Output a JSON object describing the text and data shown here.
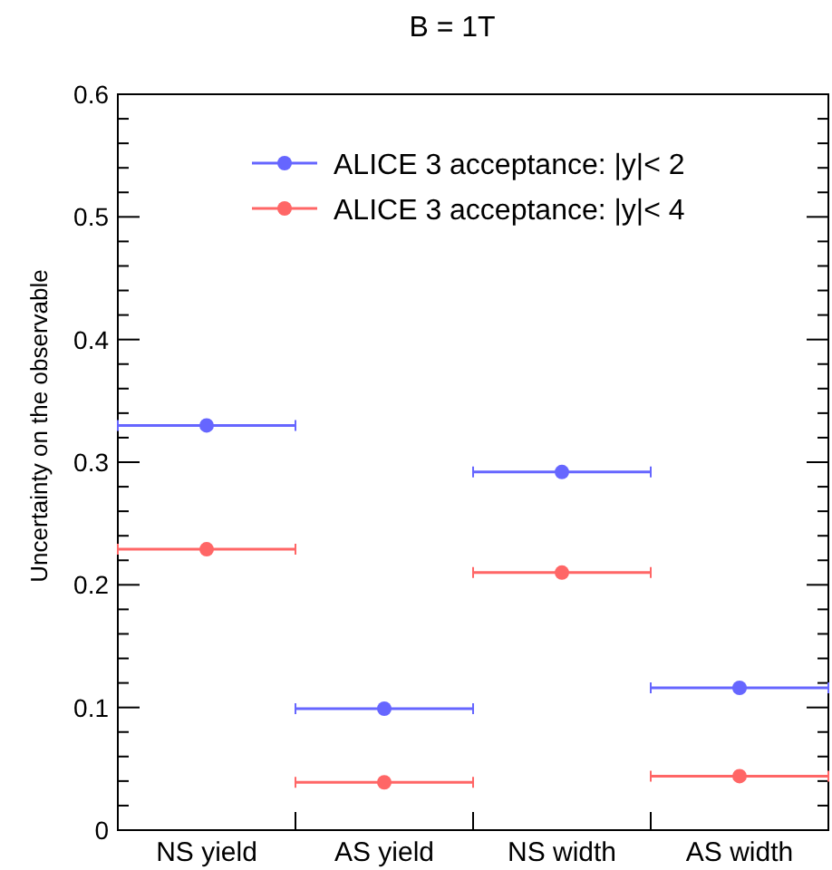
{
  "chart_data": {
    "type": "scatter",
    "title": "B = 1T",
    "ylabel": "Uncertainty on the observable",
    "categories": [
      "NS yield",
      "AS yield",
      "NS width",
      "AS width"
    ],
    "series": [
      {
        "name": "ALICE 3 acceptance: |y|< 2",
        "color": "#6666ff",
        "values": [
          0.33,
          0.099,
          0.292,
          0.116
        ]
      },
      {
        "name": "ALICE 3 acceptance: |y|< 4",
        "color": "#ff6666",
        "values": [
          0.229,
          0.039,
          0.21,
          0.044
        ]
      }
    ],
    "ylim": [
      0,
      0.6
    ],
    "yticks": [
      0,
      {
        "value": 0.02,
        "label": null
      },
      {
        "value": 0.04,
        "label": null
      },
      {
        "value": 0.06,
        "label": null
      },
      {
        "value": 0.08,
        "label": null
      },
      0.1,
      {
        "value": 0.12,
        "label": null
      },
      {
        "value": 0.14,
        "label": null
      },
      {
        "value": 0.16,
        "label": null
      },
      {
        "value": 0.18,
        "label": null
      },
      0.2,
      {
        "value": 0.22,
        "label": null
      },
      {
        "value": 0.24,
        "label": null
      },
      {
        "value": 0.26,
        "label": null
      },
      {
        "value": 0.28,
        "label": null
      },
      0.3,
      {
        "value": 0.32,
        "label": null
      },
      {
        "value": 0.34,
        "label": null
      },
      {
        "value": 0.36,
        "label": null
      },
      {
        "value": 0.38,
        "label": null
      },
      0.4,
      {
        "value": 0.42,
        "label": null
      },
      {
        "value": 0.44,
        "label": null
      },
      {
        "value": 0.46,
        "label": null
      },
      {
        "value": 0.48,
        "label": null
      },
      0.5,
      {
        "value": 0.52,
        "label": null
      },
      {
        "value": 0.54,
        "label": null
      },
      {
        "value": 0.56,
        "label": null
      },
      {
        "value": 0.58,
        "label": null
      },
      0.6
    ],
    "grid": false,
    "legend": "top right",
    "marker": "circle"
  }
}
